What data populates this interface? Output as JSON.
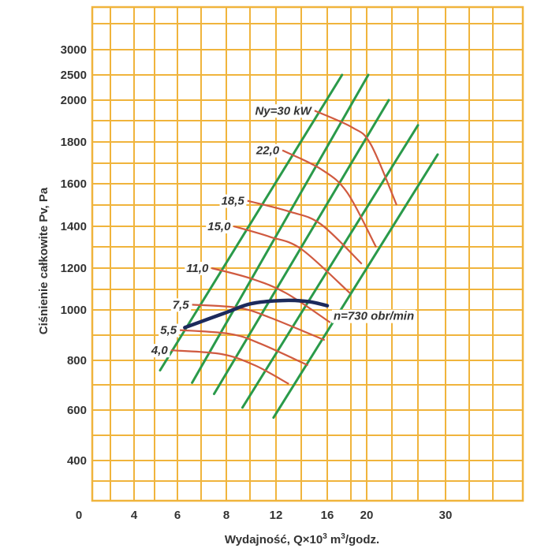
{
  "chart_data": {
    "type": "line",
    "xlabel": "Wydajność, Q×10",
    "xlabel_sup": "3",
    "xlabel_unit": "m",
    "xlabel_unit_sup": "3",
    "xlabel_tail": "/godz.",
    "ylabel": "Ciśnienie całkowite Pv, Pa",
    "x_ticks": [
      "0",
      "4",
      "6",
      "8",
      "12",
      "16",
      "20",
      "30"
    ],
    "y_ticks": [
      "400",
      "600",
      "800",
      "1000",
      "1200",
      "1400",
      "1600",
      "1800",
      "2000",
      "2500",
      "3000"
    ],
    "grid": true,
    "colors": {
      "grid": "#f0b43c",
      "efficiency_lines": "#2a9a4a",
      "power_curves": "#d05a40",
      "speed_curve": "#1c2a5c",
      "text": "#333333"
    },
    "efficiency_lines": [
      {
        "x": [
          5.2,
          17.5
        ],
        "y": [
          760,
          2500
        ]
      },
      {
        "x": [
          6.6,
          20.2
        ],
        "y": [
          710,
          2500
        ]
      },
      {
        "x": [
          7.5,
          22.8
        ],
        "y": [
          665,
          2000
        ]
      },
      {
        "x": [
          9.3,
          26.5
        ],
        "y": [
          610,
          1880
        ]
      },
      {
        "x": [
          11.8,
          29.0
        ],
        "y": [
          570,
          1740
        ]
      }
    ],
    "power_curves": [
      {
        "label": "Ny=30 kW",
        "x": [
          15.0,
          18.5,
          20.5,
          23.8
        ],
        "y": [
          1950,
          1870,
          1790,
          1500
        ]
      },
      {
        "label": "22,0",
        "x": [
          12.5,
          15.5,
          18.0,
          21.2
        ],
        "y": [
          1760,
          1670,
          1560,
          1300
        ]
      },
      {
        "label": "18,5",
        "x": [
          9.7,
          13.0,
          15.5,
          19.5
        ],
        "y": [
          1520,
          1470,
          1410,
          1220
        ]
      },
      {
        "label": "15,0",
        "x": [
          8.6,
          11.5,
          14.0,
          18.3
        ],
        "y": [
          1400,
          1350,
          1290,
          1080
        ]
      },
      {
        "label": "11,0",
        "x": [
          7.4,
          10.0,
          12.8,
          16.3
        ],
        "y": [
          1200,
          1150,
          1080,
          950
        ]
      },
      {
        "label": "7,5",
        "x": [
          6.6,
          9.0,
          11.5,
          15.8
        ],
        "y": [
          1025,
          1010,
          970,
          880
        ]
      },
      {
        "label": "5,5",
        "x": [
          6.1,
          8.3,
          10.8,
          14.5
        ],
        "y": [
          920,
          905,
          865,
          780
        ]
      },
      {
        "label": "4,0",
        "x": [
          5.7,
          7.8,
          10.3,
          13.0
        ],
        "y": [
          840,
          825,
          780,
          705
        ]
      }
    ],
    "speed_curve": {
      "label": "n=730 obr/min",
      "x": [
        6.3,
        8.0,
        10.0,
        12.5,
        14.5,
        16.0
      ],
      "y": [
        930,
        990,
        1030,
        1045,
        1040,
        1020
      ]
    }
  }
}
